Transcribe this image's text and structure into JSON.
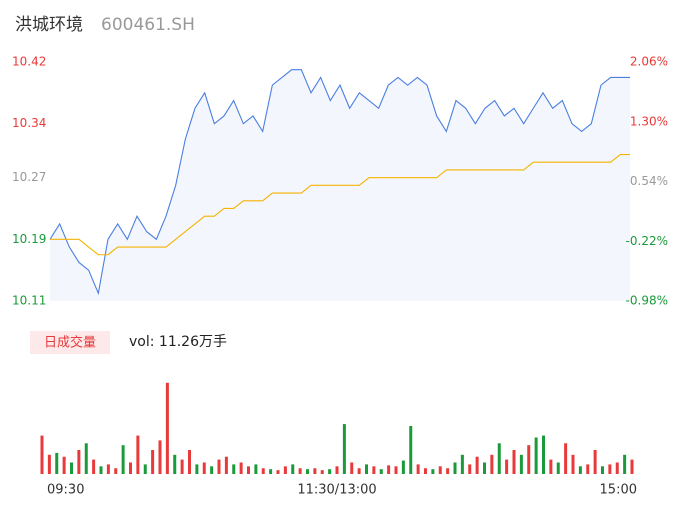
{
  "chart_data": [
    {
      "type": "line",
      "title": "洪城环境",
      "subtitle": "600461.SH",
      "x": [
        0,
        4,
        8,
        12,
        16,
        20,
        24,
        28,
        32,
        36,
        40,
        44,
        48,
        52,
        56,
        60,
        64,
        68,
        72,
        76,
        80,
        84,
        88,
        92,
        96,
        100,
        104,
        108,
        112,
        116,
        120,
        124,
        128,
        132,
        136,
        140,
        144,
        148,
        152,
        156,
        160,
        164,
        168,
        172,
        176,
        180,
        184,
        188,
        192,
        196,
        200,
        204,
        208,
        212,
        216,
        220,
        224,
        228,
        232,
        236,
        240
      ],
      "xlim": [
        0,
        240
      ],
      "series": [
        {
          "name": "price",
          "color": "#4a7fe0",
          "values": [
            10.19,
            10.21,
            10.18,
            10.16,
            10.15,
            10.12,
            10.19,
            10.21,
            10.19,
            10.22,
            10.2,
            10.19,
            10.22,
            10.26,
            10.32,
            10.36,
            10.38,
            10.34,
            10.35,
            10.37,
            10.34,
            10.35,
            10.33,
            10.39,
            10.4,
            10.41,
            10.41,
            10.38,
            10.4,
            10.37,
            10.39,
            10.36,
            10.38,
            10.37,
            10.36,
            10.39,
            10.4,
            10.39,
            10.4,
            10.39,
            10.35,
            10.33,
            10.37,
            10.36,
            10.34,
            10.36,
            10.37,
            10.35,
            10.36,
            10.34,
            10.36,
            10.38,
            10.36,
            10.37,
            10.34,
            10.33,
            10.34,
            10.39,
            10.4,
            10.4,
            10.4
          ]
        },
        {
          "name": "average",
          "color": "#f5b400",
          "values": [
            10.19,
            10.19,
            10.19,
            10.19,
            10.18,
            10.17,
            10.17,
            10.18,
            10.18,
            10.18,
            10.18,
            10.18,
            10.18,
            10.19,
            10.2,
            10.21,
            10.22,
            10.22,
            10.23,
            10.23,
            10.24,
            10.24,
            10.24,
            10.25,
            10.25,
            10.25,
            10.25,
            10.26,
            10.26,
            10.26,
            10.26,
            10.26,
            10.26,
            10.27,
            10.27,
            10.27,
            10.27,
            10.27,
            10.27,
            10.27,
            10.27,
            10.28,
            10.28,
            10.28,
            10.28,
            10.28,
            10.28,
            10.28,
            10.28,
            10.28,
            10.29,
            10.29,
            10.29,
            10.29,
            10.29,
            10.29,
            10.29,
            10.29,
            10.29,
            10.3,
            10.3
          ]
        }
      ],
      "ylim": [
        10.11,
        10.42
      ],
      "yticks": [
        10.42,
        10.34,
        10.27,
        10.19,
        10.11
      ],
      "y2lim": [
        -0.98,
        2.06
      ],
      "y2ticks": [
        {
          "value": 2.06,
          "label": "2.06%"
        },
        {
          "value": 1.3,
          "label": "1.30%"
        },
        {
          "value": 0.54,
          "label": "0.54%"
        },
        {
          "value": -0.22,
          "label": "-0.22%"
        },
        {
          "value": -0.98,
          "label": "-0.98%"
        }
      ],
      "tick_colors": [
        "#e83a3a",
        "#999999",
        "#1a9a3a"
      ],
      "fill": "#f3f6fd"
    },
    {
      "type": "bar",
      "title": "日成交量",
      "annotation": "vol: 11.26万手",
      "x": [
        0,
        3,
        6,
        9,
        12,
        15,
        18,
        21,
        24,
        27,
        30,
        33,
        36,
        39,
        42,
        45,
        48,
        51,
        54,
        57,
        60,
        63,
        66,
        69,
        72,
        75,
        78,
        81,
        84,
        87,
        90,
        93,
        96,
        99,
        102,
        105,
        108,
        111,
        114,
        117,
        120,
        123,
        126,
        129,
        132,
        135,
        138,
        141,
        144,
        147,
        150,
        153,
        156,
        159,
        162,
        165,
        168,
        171,
        174,
        177,
        180,
        183,
        186,
        189,
        192,
        195,
        198,
        201,
        204,
        207,
        210,
        213,
        216,
        219,
        222,
        225,
        228,
        231,
        234,
        237,
        240
      ],
      "xlim": [
        0,
        240
      ],
      "values": [
        40,
        20,
        22,
        18,
        12,
        25,
        32,
        15,
        8,
        10,
        6,
        30,
        12,
        40,
        10,
        25,
        35,
        95,
        20,
        15,
        25,
        10,
        12,
        8,
        15,
        18,
        10,
        12,
        8,
        10,
        6,
        5,
        4,
        8,
        10,
        6,
        5,
        6,
        4,
        5,
        8,
        52,
        12,
        6,
        10,
        8,
        5,
        9,
        8,
        14,
        50,
        10,
        6,
        5,
        8,
        6,
        12,
        20,
        10,
        18,
        12,
        20,
        32,
        15,
        25,
        20,
        30,
        38,
        40,
        15,
        12,
        32,
        20,
        8,
        10,
        25,
        8,
        10,
        12,
        20,
        15
      ],
      "colors": [
        "#e83a3a",
        "#1a9a3a"
      ],
      "color_index": [
        0,
        0,
        1,
        0,
        1,
        0,
        1,
        0,
        1,
        0,
        0,
        1,
        0,
        0,
        1,
        0,
        0,
        0,
        1,
        0,
        0,
        1,
        0,
        1,
        0,
        0,
        1,
        0,
        0,
        1,
        0,
        1,
        0,
        0,
        1,
        0,
        1,
        0,
        0,
        1,
        0,
        1,
        0,
        0,
        1,
        0,
        1,
        0,
        0,
        1,
        1,
        0,
        0,
        1,
        0,
        0,
        1,
        1,
        0,
        0,
        1,
        0,
        1,
        0,
        0,
        1,
        0,
        1,
        1,
        0,
        1,
        0,
        0,
        1,
        0,
        0,
        1,
        0,
        0,
        1,
        0
      ],
      "ylim": [
        0,
        100
      ],
      "xticks": [
        {
          "value": 0,
          "label": "09:30"
        },
        {
          "value": 120,
          "label": "11:30/13:00"
        },
        {
          "value": 240,
          "label": "15:00"
        }
      ]
    }
  ]
}
